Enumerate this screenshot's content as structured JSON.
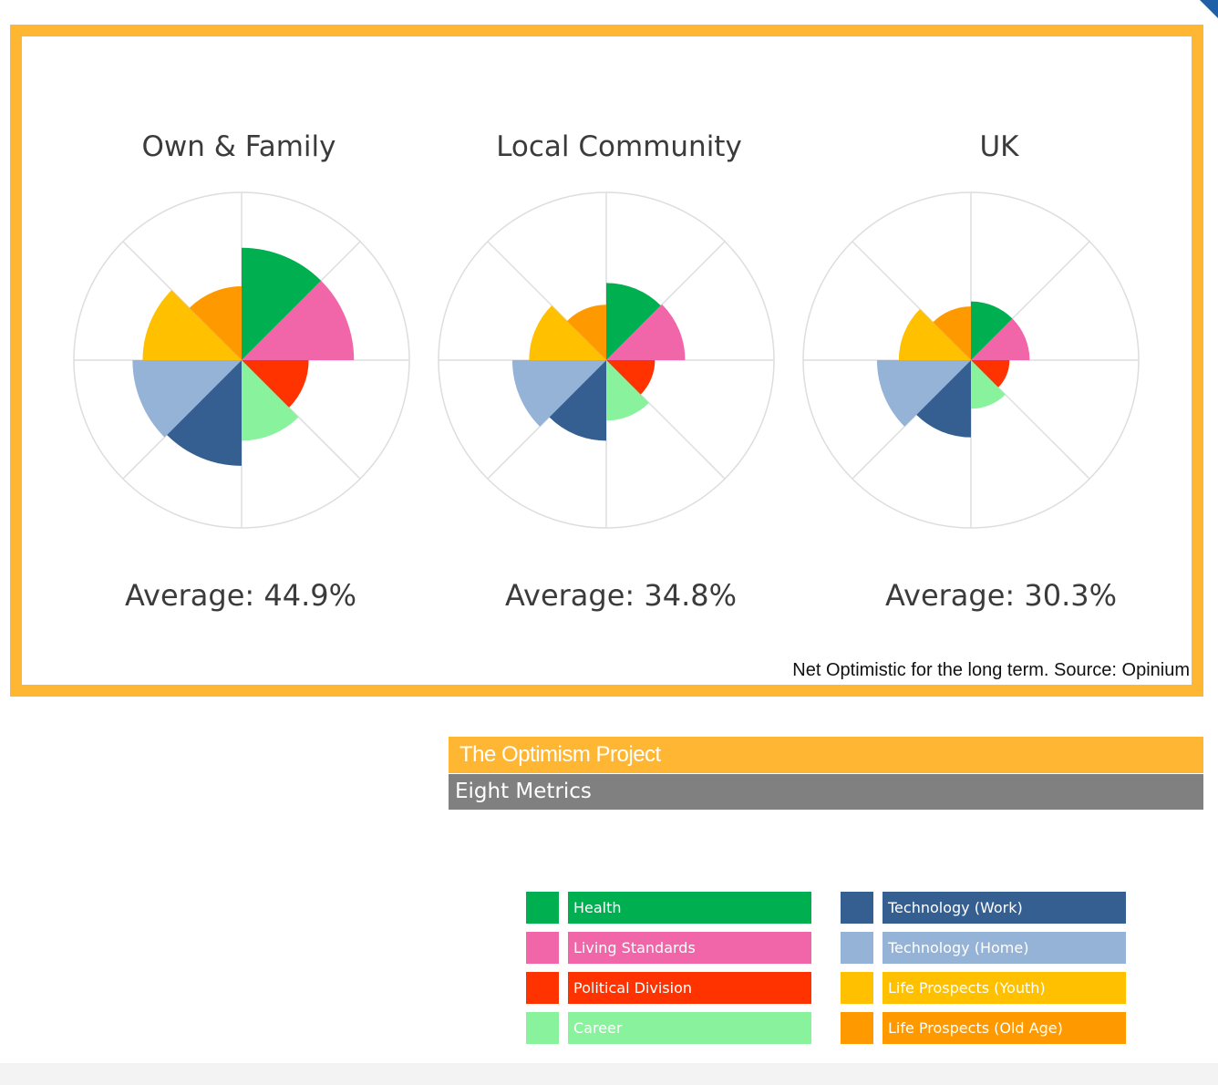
{
  "chart_data": [
    {
      "type": "polar-area",
      "title": "Own & Family",
      "average_label": "Average: 44.9%",
      "categories": [
        "Health",
        "Living Standards",
        "Political Division",
        "Career",
        "Technology (Work)",
        "Technology (Home)",
        "Life Prospects (Youth)",
        "Life Prospects (Old Age)"
      ],
      "values": [
        67,
        67,
        40,
        48,
        63,
        65,
        59,
        44
      ],
      "rmax": 100
    },
    {
      "type": "polar-area",
      "title": "Local Community",
      "average_label": "Average: 34.8%",
      "categories": [
        "Health",
        "Living Standards",
        "Political Division",
        "Career",
        "Technology (Work)",
        "Technology (Home)",
        "Life Prospects (Youth)",
        "Life Prospects (Old Age)"
      ],
      "values": [
        46,
        47,
        29,
        36,
        48,
        56,
        46,
        33
      ],
      "rmax": 100
    },
    {
      "type": "polar-area",
      "title": "UK",
      "average_label": "Average: 30.3%",
      "categories": [
        "Health",
        "Living Standards",
        "Political Division",
        "Career",
        "Technology (Work)",
        "Technology (Home)",
        "Life Prospects (Youth)",
        "Life Prospects (Old Age)"
      ],
      "values": [
        35,
        35,
        23,
        29,
        46,
        56,
        43,
        32
      ],
      "rmax": 100
    }
  ],
  "source_note": "Net Optimistic for the long term. Source: Opinium",
  "banner": {
    "title": "The Optimism Project",
    "subtitle": "Eight Metrics"
  },
  "legend": [
    {
      "label": "Health",
      "color": "#00b050"
    },
    {
      "label": "Living Standards",
      "color": "#f066a8"
    },
    {
      "label": "Political Division",
      "color": "#ff3300"
    },
    {
      "label": "Career",
      "color": "#88f39c"
    },
    {
      "label": "Technology (Work)",
      "color": "#365f91"
    },
    {
      "label": "Technology (Home)",
      "color": "#95b3d7"
    },
    {
      "label": "Life Prospects (Youth)",
      "color": "#ffc000"
    },
    {
      "label": "Life Prospects (Old Age)",
      "color": "#ff9900"
    }
  ],
  "colors": {
    "frame": "#ffb733",
    "subtitle_bar": "#808080",
    "grid": "#dddddd"
  }
}
